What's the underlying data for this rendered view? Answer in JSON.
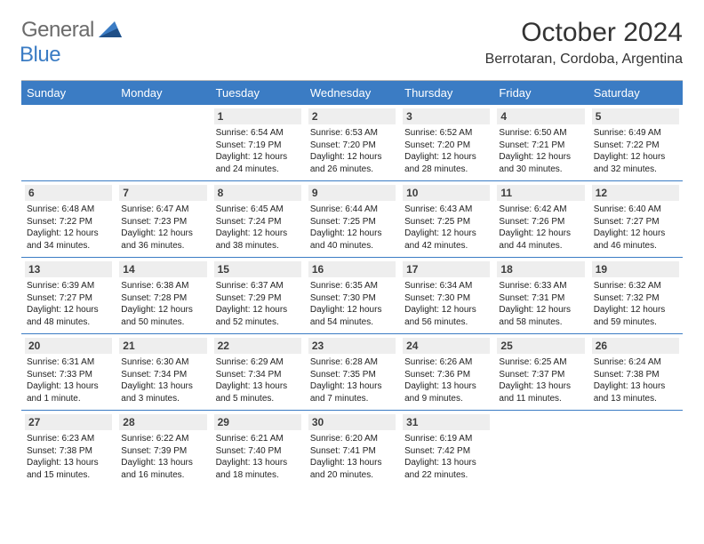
{
  "logo": {
    "general": "General",
    "blue": "Blue"
  },
  "header": {
    "title": "October 2024",
    "location": "Berrotaran, Cordoba, Argentina"
  },
  "colors": {
    "header_bar": "#3b7cc4",
    "day_header_bg": "#eeeeee",
    "text": "#333333",
    "logo_gray": "#6b6b6b",
    "logo_blue": "#3b7cc4",
    "week_border": "#3b7cc4"
  },
  "weekdays": [
    "Sunday",
    "Monday",
    "Tuesday",
    "Wednesday",
    "Thursday",
    "Friday",
    "Saturday"
  ],
  "weeks": [
    [
      null,
      null,
      {
        "n": "1",
        "r": "Sunrise: 6:54 AM",
        "s": "Sunset: 7:19 PM",
        "d1": "Daylight: 12 hours",
        "d2": "and 24 minutes."
      },
      {
        "n": "2",
        "r": "Sunrise: 6:53 AM",
        "s": "Sunset: 7:20 PM",
        "d1": "Daylight: 12 hours",
        "d2": "and 26 minutes."
      },
      {
        "n": "3",
        "r": "Sunrise: 6:52 AM",
        "s": "Sunset: 7:20 PM",
        "d1": "Daylight: 12 hours",
        "d2": "and 28 minutes."
      },
      {
        "n": "4",
        "r": "Sunrise: 6:50 AM",
        "s": "Sunset: 7:21 PM",
        "d1": "Daylight: 12 hours",
        "d2": "and 30 minutes."
      },
      {
        "n": "5",
        "r": "Sunrise: 6:49 AM",
        "s": "Sunset: 7:22 PM",
        "d1": "Daylight: 12 hours",
        "d2": "and 32 minutes."
      }
    ],
    [
      {
        "n": "6",
        "r": "Sunrise: 6:48 AM",
        "s": "Sunset: 7:22 PM",
        "d1": "Daylight: 12 hours",
        "d2": "and 34 minutes."
      },
      {
        "n": "7",
        "r": "Sunrise: 6:47 AM",
        "s": "Sunset: 7:23 PM",
        "d1": "Daylight: 12 hours",
        "d2": "and 36 minutes."
      },
      {
        "n": "8",
        "r": "Sunrise: 6:45 AM",
        "s": "Sunset: 7:24 PM",
        "d1": "Daylight: 12 hours",
        "d2": "and 38 minutes."
      },
      {
        "n": "9",
        "r": "Sunrise: 6:44 AM",
        "s": "Sunset: 7:25 PM",
        "d1": "Daylight: 12 hours",
        "d2": "and 40 minutes."
      },
      {
        "n": "10",
        "r": "Sunrise: 6:43 AM",
        "s": "Sunset: 7:25 PM",
        "d1": "Daylight: 12 hours",
        "d2": "and 42 minutes."
      },
      {
        "n": "11",
        "r": "Sunrise: 6:42 AM",
        "s": "Sunset: 7:26 PM",
        "d1": "Daylight: 12 hours",
        "d2": "and 44 minutes."
      },
      {
        "n": "12",
        "r": "Sunrise: 6:40 AM",
        "s": "Sunset: 7:27 PM",
        "d1": "Daylight: 12 hours",
        "d2": "and 46 minutes."
      }
    ],
    [
      {
        "n": "13",
        "r": "Sunrise: 6:39 AM",
        "s": "Sunset: 7:27 PM",
        "d1": "Daylight: 12 hours",
        "d2": "and 48 minutes."
      },
      {
        "n": "14",
        "r": "Sunrise: 6:38 AM",
        "s": "Sunset: 7:28 PM",
        "d1": "Daylight: 12 hours",
        "d2": "and 50 minutes."
      },
      {
        "n": "15",
        "r": "Sunrise: 6:37 AM",
        "s": "Sunset: 7:29 PM",
        "d1": "Daylight: 12 hours",
        "d2": "and 52 minutes."
      },
      {
        "n": "16",
        "r": "Sunrise: 6:35 AM",
        "s": "Sunset: 7:30 PM",
        "d1": "Daylight: 12 hours",
        "d2": "and 54 minutes."
      },
      {
        "n": "17",
        "r": "Sunrise: 6:34 AM",
        "s": "Sunset: 7:30 PM",
        "d1": "Daylight: 12 hours",
        "d2": "and 56 minutes."
      },
      {
        "n": "18",
        "r": "Sunrise: 6:33 AM",
        "s": "Sunset: 7:31 PM",
        "d1": "Daylight: 12 hours",
        "d2": "and 58 minutes."
      },
      {
        "n": "19",
        "r": "Sunrise: 6:32 AM",
        "s": "Sunset: 7:32 PM",
        "d1": "Daylight: 12 hours",
        "d2": "and 59 minutes."
      }
    ],
    [
      {
        "n": "20",
        "r": "Sunrise: 6:31 AM",
        "s": "Sunset: 7:33 PM",
        "d1": "Daylight: 13 hours",
        "d2": "and 1 minute."
      },
      {
        "n": "21",
        "r": "Sunrise: 6:30 AM",
        "s": "Sunset: 7:34 PM",
        "d1": "Daylight: 13 hours",
        "d2": "and 3 minutes."
      },
      {
        "n": "22",
        "r": "Sunrise: 6:29 AM",
        "s": "Sunset: 7:34 PM",
        "d1": "Daylight: 13 hours",
        "d2": "and 5 minutes."
      },
      {
        "n": "23",
        "r": "Sunrise: 6:28 AM",
        "s": "Sunset: 7:35 PM",
        "d1": "Daylight: 13 hours",
        "d2": "and 7 minutes."
      },
      {
        "n": "24",
        "r": "Sunrise: 6:26 AM",
        "s": "Sunset: 7:36 PM",
        "d1": "Daylight: 13 hours",
        "d2": "and 9 minutes."
      },
      {
        "n": "25",
        "r": "Sunrise: 6:25 AM",
        "s": "Sunset: 7:37 PM",
        "d1": "Daylight: 13 hours",
        "d2": "and 11 minutes."
      },
      {
        "n": "26",
        "r": "Sunrise: 6:24 AM",
        "s": "Sunset: 7:38 PM",
        "d1": "Daylight: 13 hours",
        "d2": "and 13 minutes."
      }
    ],
    [
      {
        "n": "27",
        "r": "Sunrise: 6:23 AM",
        "s": "Sunset: 7:38 PM",
        "d1": "Daylight: 13 hours",
        "d2": "and 15 minutes."
      },
      {
        "n": "28",
        "r": "Sunrise: 6:22 AM",
        "s": "Sunset: 7:39 PM",
        "d1": "Daylight: 13 hours",
        "d2": "and 16 minutes."
      },
      {
        "n": "29",
        "r": "Sunrise: 6:21 AM",
        "s": "Sunset: 7:40 PM",
        "d1": "Daylight: 13 hours",
        "d2": "and 18 minutes."
      },
      {
        "n": "30",
        "r": "Sunrise: 6:20 AM",
        "s": "Sunset: 7:41 PM",
        "d1": "Daylight: 13 hours",
        "d2": "and 20 minutes."
      },
      {
        "n": "31",
        "r": "Sunrise: 6:19 AM",
        "s": "Sunset: 7:42 PM",
        "d1": "Daylight: 13 hours",
        "d2": "and 22 minutes."
      },
      null,
      null
    ]
  ]
}
